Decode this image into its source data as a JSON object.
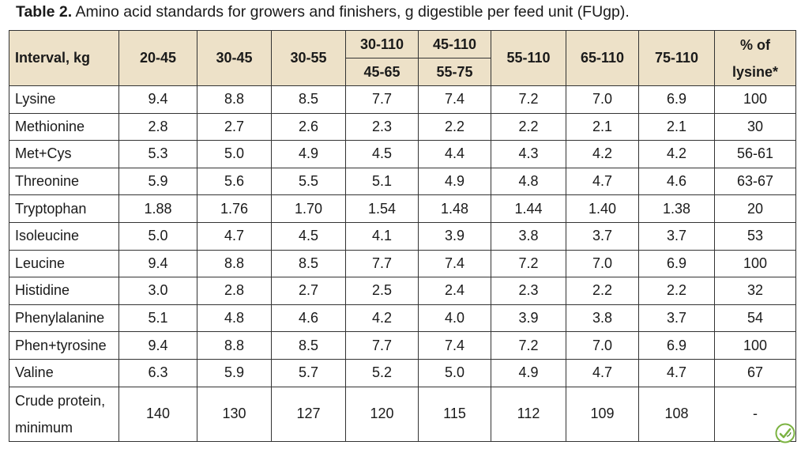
{
  "caption": {
    "label": "Table 2.",
    "text": " Amino acid standards for growers and finishers, g digestible per feed unit (FUgp)."
  },
  "table": {
    "header": {
      "interval": "Interval, kg",
      "c1": "20-45",
      "c2": "30-45",
      "c3": "30-55",
      "c4_top": "30-110",
      "c4_bottom": "45-65",
      "c5_top": "45-110",
      "c5_bottom": "55-75",
      "c6": "55-110",
      "c7": "65-110",
      "c8": "75-110",
      "pct_top": "% of",
      "pct_bottom": "lysine*"
    },
    "rows": [
      {
        "name": "Lysine",
        "v": [
          "9.4",
          "8.8",
          "8.5",
          "7.7",
          "7.4",
          "7.2",
          "7.0",
          "6.9",
          "100"
        ]
      },
      {
        "name": "Methionine",
        "v": [
          "2.8",
          "2.7",
          "2.6",
          "2.3",
          "2.2",
          "2.2",
          "2.1",
          "2.1",
          "30"
        ]
      },
      {
        "name": "Met+Cys",
        "v": [
          "5.3",
          "5.0",
          "4.9",
          "4.5",
          "4.4",
          "4.3",
          "4.2",
          "4.2",
          "56-61"
        ]
      },
      {
        "name": "Threonine",
        "v": [
          "5.9",
          "5.6",
          "5.5",
          "5.1",
          "4.9",
          "4.8",
          "4.7",
          "4.6",
          "63-67"
        ]
      },
      {
        "name": "Tryptophan",
        "v": [
          "1.88",
          "1.76",
          "1.70",
          "1.54",
          "1.48",
          "1.44",
          "1.40",
          "1.38",
          "20"
        ]
      },
      {
        "name": "Isoleucine",
        "v": [
          "5.0",
          "4.7",
          "4.5",
          "4.1",
          "3.9",
          "3.8",
          "3.7",
          "3.7",
          "53"
        ]
      },
      {
        "name": "Leucine",
        "v": [
          "9.4",
          "8.8",
          "8.5",
          "7.7",
          "7.4",
          "7.2",
          "7.0",
          "6.9",
          "100"
        ]
      },
      {
        "name": "Histidine",
        "v": [
          "3.0",
          "2.8",
          "2.7",
          "2.5",
          "2.4",
          "2.3",
          "2.2",
          "2.2",
          "32"
        ]
      },
      {
        "name": "Phenylalanine",
        "v": [
          "5.1",
          "4.8",
          "4.6",
          "4.2",
          "4.0",
          "3.9",
          "3.8",
          "3.7",
          "54"
        ]
      },
      {
        "name": "Phen+tyrosine",
        "v": [
          "9.4",
          "8.8",
          "8.5",
          "7.7",
          "7.4",
          "7.2",
          "7.0",
          "6.9",
          "100"
        ]
      },
      {
        "name": "Valine",
        "v": [
          "6.3",
          "5.9",
          "5.7",
          "5.2",
          "5.0",
          "4.9",
          "4.7",
          "4.7",
          "67"
        ]
      }
    ],
    "crude": {
      "line1": "Crude protein,",
      "line2": "minimum",
      "v": [
        "140",
        "130",
        "127",
        "120",
        "115",
        "112",
        "109",
        "108",
        "-"
      ]
    }
  },
  "colors": {
    "header_bg": "#ede1c8",
    "border": "#333333",
    "logo_green": "#7cb342"
  },
  "icons": {
    "corner_logo": "leaf-check-logo-icon"
  }
}
